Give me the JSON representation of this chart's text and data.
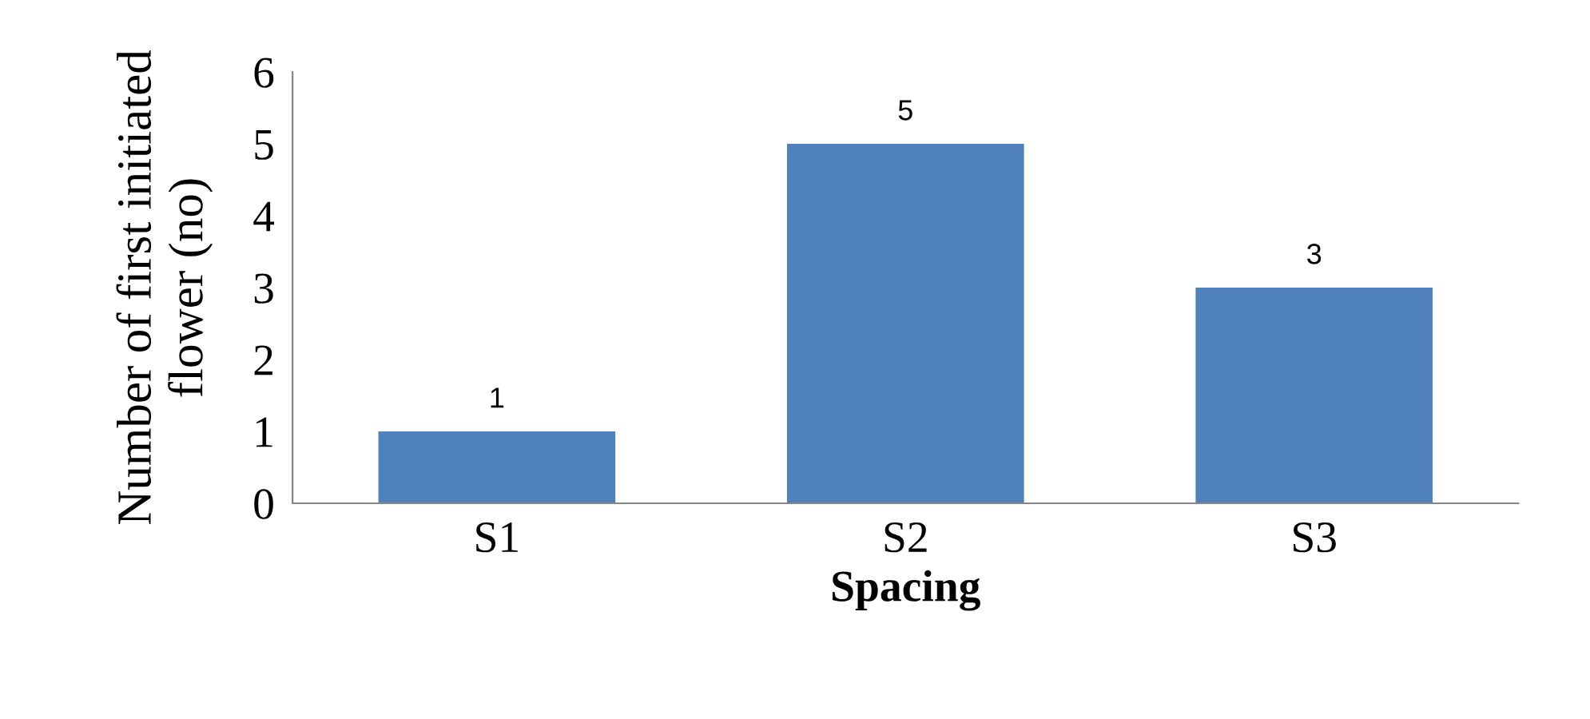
{
  "chart_data": {
    "type": "bar",
    "xlabel": "Spacing",
    "ylabel": "Number of first initiated\nflower (no)",
    "categories": [
      "S1",
      "S2",
      "S3"
    ],
    "values": [
      1,
      5,
      3
    ],
    "color": "#4f81bd",
    "ylim": [
      0,
      6
    ],
    "yticks": [
      0,
      1,
      2,
      3,
      4,
      5,
      6
    ],
    "grid": false,
    "data_labels": true
  }
}
